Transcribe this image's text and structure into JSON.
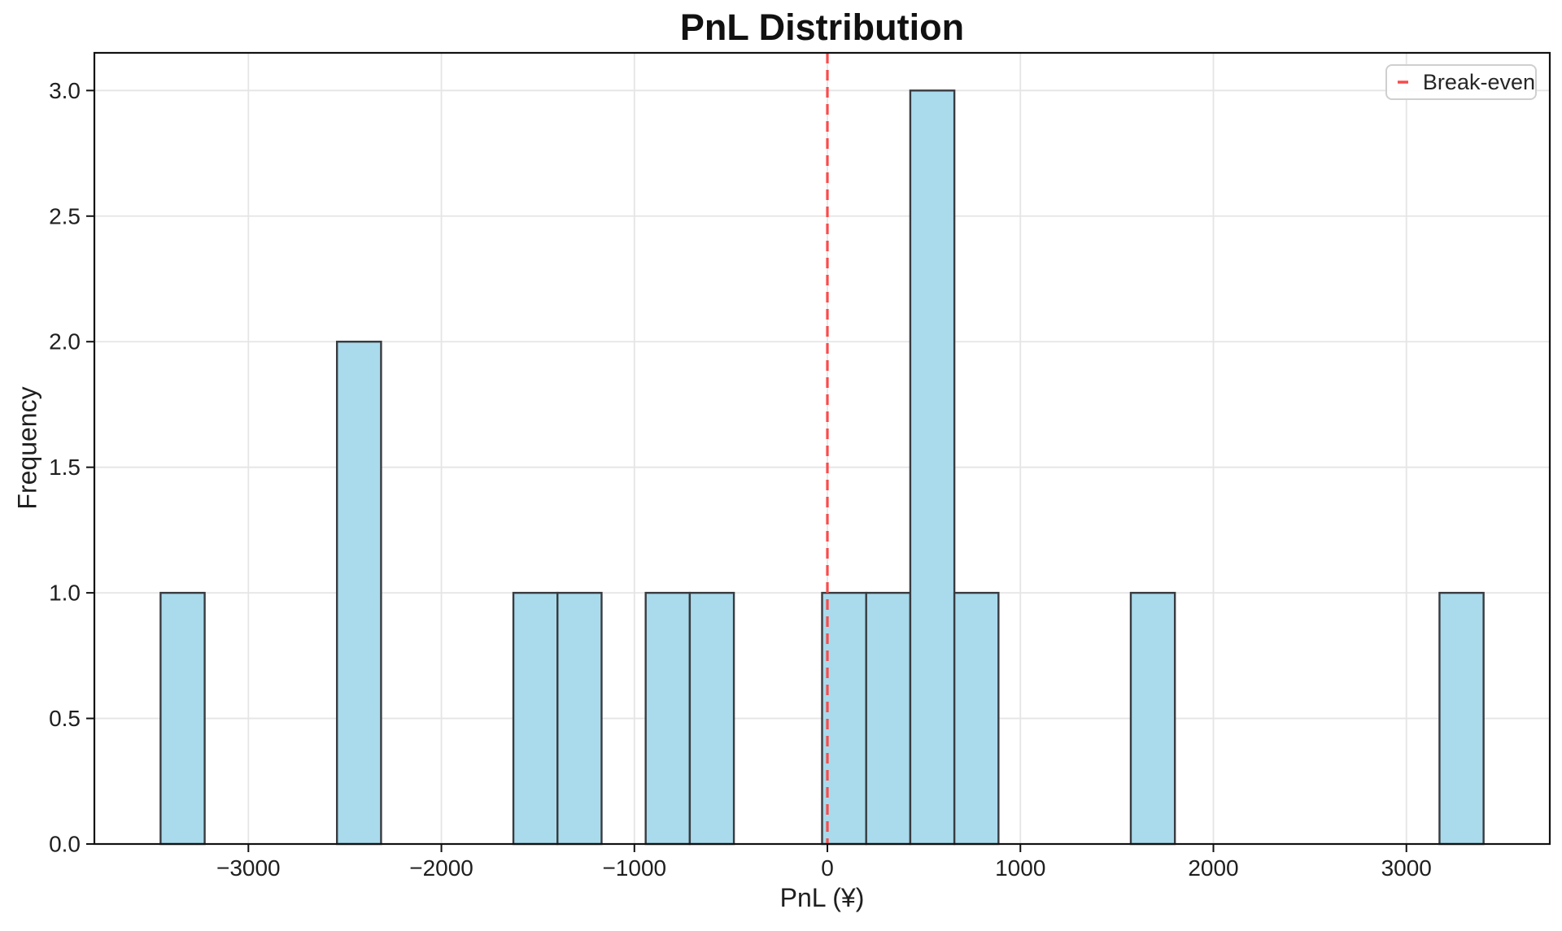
{
  "chart_data": {
    "type": "bar",
    "subtype": "histogram",
    "title": "PnL Distribution",
    "xlabel": "PnL (¥)",
    "ylabel": "Frequency",
    "legend_position": "upper right",
    "breakeven_line": {
      "x": 0,
      "label": "Break-even",
      "style": "dashed"
    },
    "bin_edges": [
      -3455,
      -3226.5,
      -2998,
      -2769.5,
      -2541,
      -2312.5,
      -2084,
      -1855.5,
      -1627,
      -1398.5,
      -1170,
      -941.5,
      -713,
      -484.5,
      -256,
      -27.5,
      201,
      429.5,
      658,
      886.5,
      1115,
      1343.5,
      1572,
      1800.5,
      2029,
      2257.5,
      2486,
      2714.5,
      2943,
      3171.5,
      3400
    ],
    "counts": [
      1,
      0,
      0,
      0,
      2,
      0,
      0,
      0,
      1,
      1,
      0,
      1,
      1,
      0,
      0,
      1,
      1,
      3,
      1,
      0,
      0,
      0,
      1,
      0,
      0,
      0,
      0,
      0,
      0,
      1
    ],
    "x_ticks": [
      -3000,
      -2000,
      -1000,
      0,
      1000,
      2000,
      3000
    ],
    "x_tick_labels": [
      "−3000",
      "−2000",
      "−1000",
      "0",
      "1000",
      "2000",
      "3000"
    ],
    "y_ticks": [
      0,
      0.5,
      1,
      1.5,
      2,
      2.5,
      3
    ],
    "y_tick_labels": [
      "0.0",
      "0.5",
      "1.0",
      "1.5",
      "2.0",
      "2.5",
      "3.0"
    ],
    "xlim": [
      -3798,
      3743
    ],
    "ylim": [
      0,
      3.15
    ],
    "grid": true,
    "colors": {
      "bar_fill": "#A9DBEC",
      "bar_edge": "#383B40",
      "breakeven": "#FA4A4A",
      "grid": "#E5E5E5",
      "spine": "#111111",
      "text": "#1F1F1F",
      "legend_border": "#CFCFCF"
    }
  }
}
